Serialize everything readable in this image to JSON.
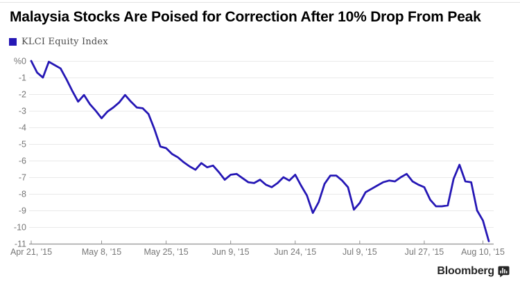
{
  "title": "Malaysia Stocks Are Poised for Correction After 10% Drop From Peak",
  "legend": {
    "label": "KLCI Equity Index",
    "swatch_color": "#2517b5"
  },
  "branding": {
    "wordmark": "Bloomberg"
  },
  "chart_data": {
    "type": "line",
    "title": "Malaysia Stocks Are Poised for Correction After 10% Drop From Peak",
    "unit": "%",
    "ylim": [
      -11,
      0
    ],
    "grid": "horizontal",
    "legend_position": "top-left",
    "line_color": "#2517b5",
    "grid_color": "#e9e9e9",
    "axis_color": "#8f8f8f",
    "label_color": "#767676",
    "y_ticks": [
      0,
      -1,
      -2,
      -3,
      -4,
      -5,
      -6,
      -7,
      -8,
      -9,
      -10,
      -11
    ],
    "y_tick_labels": [
      "%0",
      "-1",
      "-2",
      "-3",
      "-4",
      "-5",
      "-6",
      "-7",
      "-8",
      "-9",
      "-10",
      "-11"
    ],
    "x_tick_labels": [
      "Apr 21, '15",
      "May 8, '15",
      "May 25, '15",
      "Jun 9, '15",
      "Jun 24, '15",
      "Jul 9, '15",
      "Jul 27, '15",
      "Aug 10, '15"
    ],
    "x_tick_indices": [
      0,
      12,
      23,
      34,
      45,
      56,
      67,
      77
    ],
    "series": [
      {
        "name": "KLCI Equity Index",
        "values": [
          0,
          -0.7,
          -1.0,
          -0.05,
          -0.25,
          -0.45,
          -1.1,
          -1.8,
          -2.45,
          -2.05,
          -2.6,
          -3.0,
          -3.45,
          -3.05,
          -2.8,
          -2.5,
          -2.05,
          -2.45,
          -2.8,
          -2.85,
          -3.2,
          -4.1,
          -5.15,
          -5.25,
          -5.6,
          -5.8,
          -6.1,
          -6.35,
          -6.55,
          -6.15,
          -6.4,
          -6.3,
          -6.7,
          -7.15,
          -6.85,
          -6.8,
          -7.05,
          -7.3,
          -7.35,
          -7.15,
          -7.45,
          -7.6,
          -7.35,
          -7.0,
          -7.2,
          -6.85,
          -7.5,
          -8.1,
          -9.15,
          -8.5,
          -7.4,
          -6.9,
          -6.9,
          -7.2,
          -7.6,
          -8.95,
          -8.55,
          -7.9,
          -7.7,
          -7.5,
          -7.3,
          -7.2,
          -7.25,
          -7.0,
          -6.8,
          -7.25,
          -7.45,
          -7.6,
          -8.35,
          -8.75,
          -8.75,
          -8.7,
          -7.1,
          -6.25,
          -7.25,
          -7.3,
          -9.0,
          -9.6,
          -10.85
        ]
      }
    ]
  }
}
